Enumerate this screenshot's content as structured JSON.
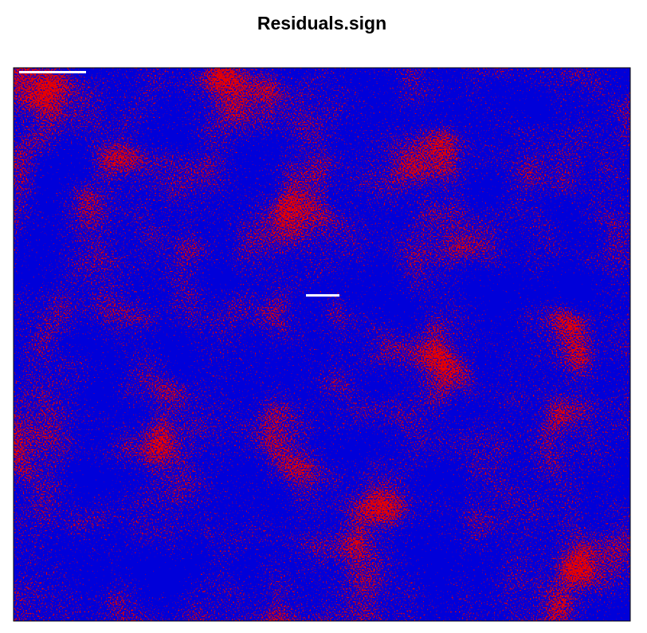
{
  "chart_data": {
    "type": "image",
    "title": "Residuals.sign"
  }
}
